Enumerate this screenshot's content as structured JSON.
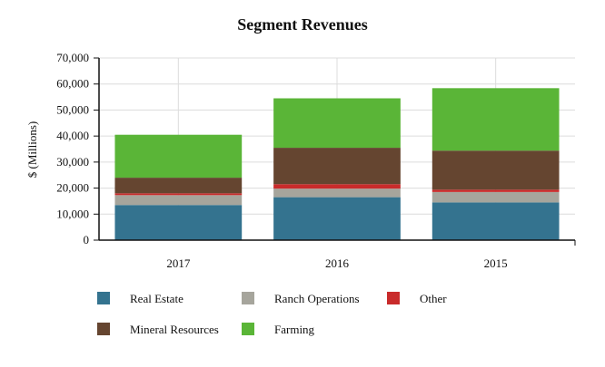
{
  "chart_data": {
    "type": "bar",
    "stacked": true,
    "title": "Segment Revenues",
    "xlabel": "",
    "ylabel": "$ (Millions)",
    "categories": [
      "2017",
      "2016",
      "2015"
    ],
    "ylim": [
      0,
      70000
    ],
    "yticks": [
      0,
      10000,
      20000,
      30000,
      40000,
      50000,
      60000,
      70000
    ],
    "ytick_labels": [
      "0",
      "10,000",
      "20,000",
      "30,000",
      "40,000",
      "50,000",
      "60,000",
      "70,000"
    ],
    "grid": true,
    "legend_position": "bottom",
    "series": [
      {
        "name": "Real Estate",
        "color": "#34738f",
        "values": [
          13500,
          16500,
          14500
        ]
      },
      {
        "name": "Ranch Operations",
        "color": "#a6a59c",
        "values": [
          3800,
          3300,
          4000
        ]
      },
      {
        "name": "Other",
        "color": "#c92b2b",
        "values": [
          700,
          1700,
          900
        ]
      },
      {
        "name": "Mineral Resources",
        "color": "#654530",
        "values": [
          6000,
          14000,
          15000
        ]
      },
      {
        "name": "Farming",
        "color": "#5ab537",
        "values": [
          16500,
          19000,
          24000
        ]
      }
    ]
  }
}
